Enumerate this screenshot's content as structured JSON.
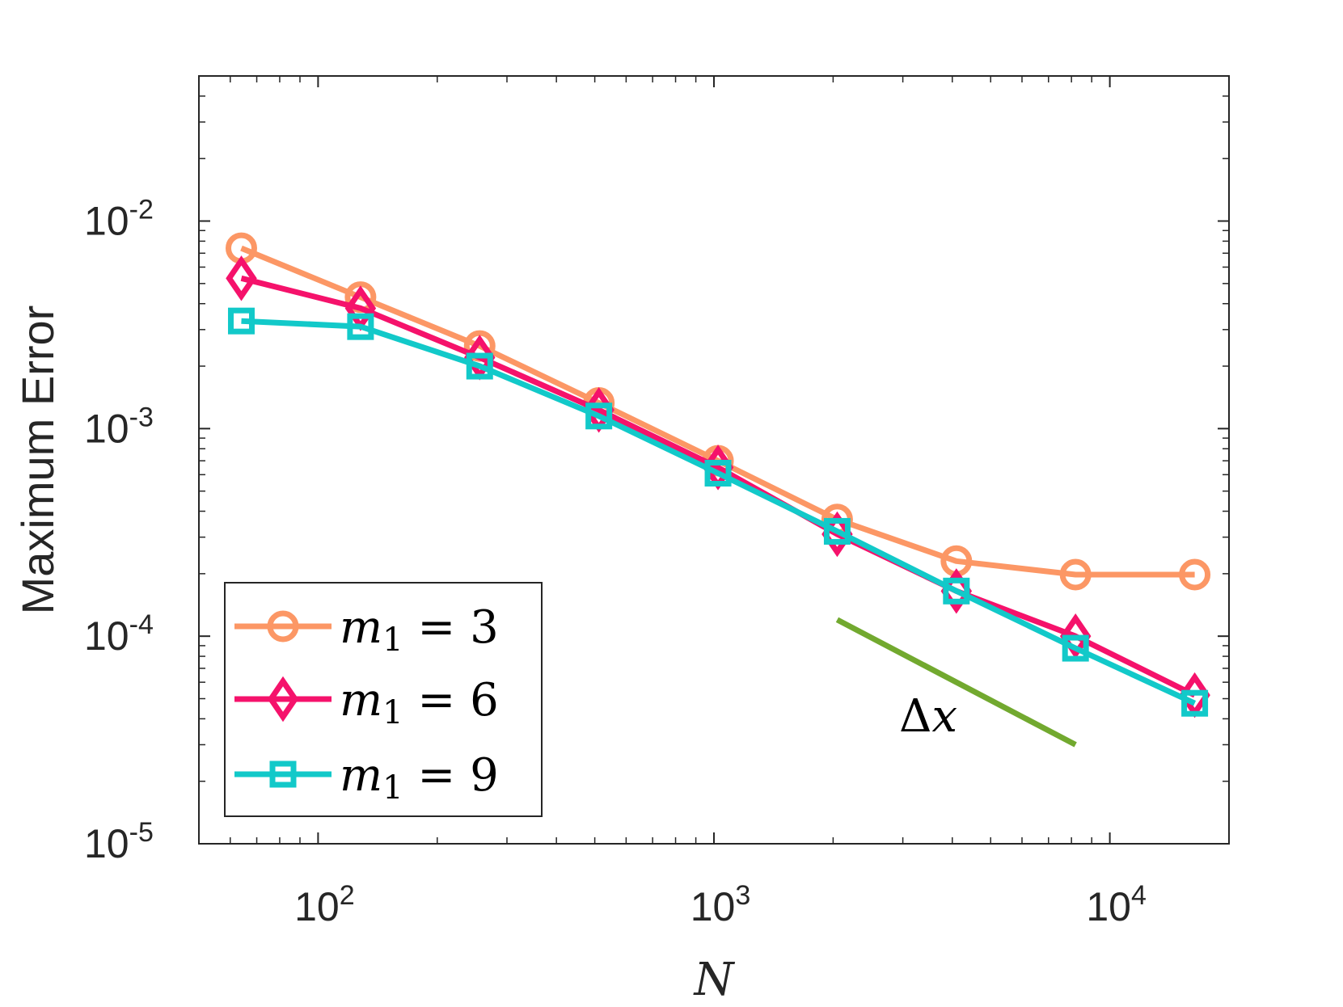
{
  "chart_data": {
    "type": "line",
    "xscale": "log",
    "yscale": "log",
    "xlim": [
      50,
      20000
    ],
    "ylim": [
      1e-05,
      0.05
    ],
    "xlabel": "N",
    "ylabel": "Maximum Error",
    "x_ticks": [
      {
        "value": 100,
        "base": "10",
        "exp": "2"
      },
      {
        "value": 1000,
        "base": "10",
        "exp": "3"
      },
      {
        "value": 10000,
        "base": "10",
        "exp": "4"
      }
    ],
    "y_ticks": [
      {
        "value": 1e-05,
        "base": "10",
        "exp": "-5"
      },
      {
        "value": 0.0001,
        "base": "10",
        "exp": "-4"
      },
      {
        "value": 0.001,
        "base": "10",
        "exp": "-3"
      },
      {
        "value": 0.01,
        "base": "10",
        "exp": "-2"
      }
    ],
    "x": [
      64,
      128,
      256,
      512,
      1024,
      2048,
      4096,
      8192,
      16384
    ],
    "series": [
      {
        "name": "m1 = 3",
        "label_var": "m",
        "label_sub": "1",
        "label_rest": " = 3",
        "color": "#FC9765",
        "marker": "circle",
        "values": [
          0.0074,
          0.0043,
          0.0025,
          0.00133,
          0.0007,
          0.000365,
          0.00023,
          0.000198,
          0.000198
        ]
      },
      {
        "name": "m1 = 6",
        "label_var": "m",
        "label_sub": "1",
        "label_rest": " = 6",
        "color": "#F5126B",
        "marker": "diamond",
        "values": [
          0.0053,
          0.0038,
          0.0022,
          0.00123,
          0.00065,
          0.00031,
          0.000165,
          0.0001,
          5.2e-05
        ]
      },
      {
        "name": "m1 = 9",
        "label_var": "m",
        "label_sub": "1",
        "label_rest": " = 9",
        "color": "#12C9C9",
        "marker": "square",
        "values": [
          0.0033,
          0.0031,
          0.002,
          0.00115,
          0.00061,
          0.00032,
          0.000165,
          8.75e-05,
          4.75e-05
        ]
      }
    ],
    "reference_line": {
      "label": "Δx",
      "label_delta": "Δ",
      "label_var": "x",
      "color": "#72A92F",
      "x": [
        2048,
        8192
      ],
      "y": [
        0.00012,
        3e-05
      ]
    },
    "legend_position": "bottom-left",
    "grid": false
  }
}
